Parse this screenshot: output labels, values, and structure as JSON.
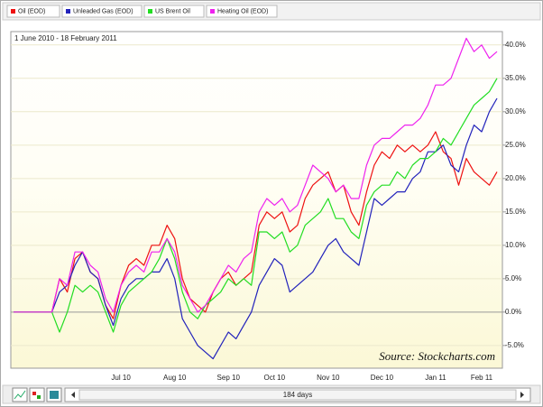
{
  "chart_data": {
    "type": "line",
    "subtitle": "1 June 2010 - 18 February 2011",
    "annotation": "Source: Stockcharts.com",
    "range_label": "184 days",
    "categories": [
      null,
      null,
      null,
      null,
      null,
      null,
      null,
      null,
      null,
      null,
      null,
      null,
      null,
      null,
      "Jul 10",
      null,
      null,
      null,
      null,
      null,
      null,
      "Aug 10",
      null,
      null,
      null,
      null,
      null,
      null,
      "Sep 10",
      null,
      null,
      null,
      null,
      null,
      "Oct 10",
      null,
      null,
      null,
      null,
      null,
      null,
      "Nov 10",
      null,
      null,
      null,
      null,
      null,
      null,
      "Dec 10",
      null,
      null,
      null,
      null,
      null,
      null,
      "Jan 11",
      null,
      null,
      null,
      null,
      null,
      "Feb 11",
      null,
      null
    ],
    "series": [
      {
        "name": "Oil (EOD)",
        "color": "#ee1111",
        "values": [
          0,
          0,
          0,
          0,
          0,
          0,
          5,
          3,
          8,
          9,
          6,
          5,
          1,
          -1,
          4,
          7,
          8,
          7,
          10,
          10,
          13,
          11,
          5,
          2,
          1,
          0,
          3,
          5,
          6,
          4,
          5,
          6,
          13,
          15,
          14,
          15,
          12,
          13,
          17,
          19,
          20,
          21,
          18,
          19,
          15,
          13,
          18,
          22,
          24,
          23,
          25,
          24,
          25,
          24,
          25,
          27,
          24,
          23,
          19,
          23,
          21,
          20,
          19,
          21
        ]
      },
      {
        "name": "Unleaded Gas (EOD)",
        "color": "#2222bb",
        "values": [
          0,
          0,
          0,
          0,
          0,
          0,
          3,
          4,
          7,
          9,
          6,
          5,
          1,
          -2,
          2,
          4,
          5,
          5,
          6,
          6,
          8,
          5,
          -1,
          -3,
          -5,
          -6,
          -7,
          -5,
          -3,
          -4,
          -2,
          0,
          4,
          6,
          8,
          7,
          3,
          4,
          5,
          6,
          8,
          10,
          11,
          9,
          8,
          7,
          12,
          17,
          16,
          17,
          18,
          18,
          20,
          21,
          24,
          24,
          25,
          22,
          21,
          25,
          28,
          27,
          30,
          32
        ]
      },
      {
        "name": "US Brent Oil",
        "color": "#22dd22",
        "values": [
          0,
          0,
          0,
          0,
          0,
          0,
          -3,
          0,
          4,
          3,
          4,
          3,
          0,
          -3,
          1,
          3,
          4,
          5,
          6,
          8,
          11,
          8,
          3,
          0,
          -1,
          1,
          2,
          3,
          5,
          4,
          5,
          4,
          12,
          12,
          11,
          12,
          9,
          10,
          13,
          14,
          15,
          17,
          14,
          14,
          12,
          11,
          16,
          18,
          19,
          19,
          21,
          20,
          22,
          23,
          23,
          24,
          26,
          25,
          27,
          29,
          31,
          32,
          33,
          35
        ]
      },
      {
        "name": "Heating Oil (EOD)",
        "color": "#ee22ee",
        "values": [
          0,
          0,
          0,
          0,
          0,
          0,
          5,
          4,
          9,
          9,
          7,
          6,
          2,
          0,
          4,
          6,
          7,
          6,
          9,
          9,
          11,
          9,
          4,
          2,
          0,
          1,
          3,
          5,
          7,
          6,
          8,
          9,
          15,
          17,
          16,
          17,
          15,
          16,
          19,
          22,
          21,
          20,
          18,
          19,
          17,
          17,
          22,
          25,
          26,
          26,
          27,
          28,
          28,
          29,
          31,
          34,
          34,
          35,
          38,
          41,
          39,
          40,
          38,
          39
        ]
      }
    ],
    "ylim": [
      -8.4,
      42
    ],
    "yticks": [
      {
        "value": -5,
        "label": "-5.0%"
      },
      {
        "value": 0,
        "label": "0.0%"
      },
      {
        "value": 5,
        "label": "5.0%"
      },
      {
        "value": 10,
        "label": "10.0%"
      },
      {
        "value": 15,
        "label": "15.0%"
      },
      {
        "value": 20,
        "label": "20.0%"
      },
      {
        "value": 25,
        "label": "25.0%"
      },
      {
        "value": 30,
        "label": "30.0%"
      },
      {
        "value": 35,
        "label": "35.0%"
      },
      {
        "value": 40,
        "label": "40.0%"
      }
    ],
    "grid": true
  }
}
